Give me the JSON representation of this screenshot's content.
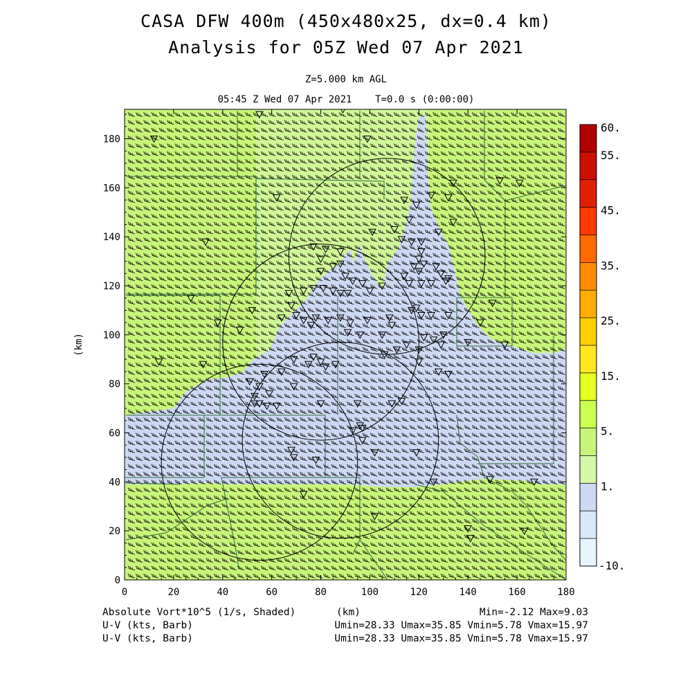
{
  "title": {
    "line1": "CASA DFW 400m (450x480x25, dx=0.4 km)",
    "line2": "Analysis for 05Z Wed 07 Apr 2021"
  },
  "subtitle": {
    "level": "Z=5.000 km AGL",
    "time": "05:45 Z Wed 07 Apr 2021    T=0.0 s (0:00:00)"
  },
  "axes": {
    "xlabel": "(km)",
    "ylabel": "(km)",
    "x_ticks": [
      "0",
      "20",
      "40",
      "60",
      "80",
      "100",
      "120",
      "140",
      "160",
      "180"
    ],
    "y_ticks": [
      "0",
      "20",
      "40",
      "60",
      "80",
      "100",
      "120",
      "140",
      "160",
      "180"
    ],
    "xlim": [
      0,
      180
    ],
    "ylim": [
      0,
      192
    ]
  },
  "colorbar": {
    "labels": [
      "60.",
      "55.",
      "45.",
      "35.",
      "25.",
      "15.",
      "5.",
      "1.",
      "-10."
    ],
    "colors": [
      "#b00000",
      "#cc1000",
      "#e22000",
      "#ff3a00",
      "#ff6a00",
      "#ff8c00",
      "#ffae00",
      "#ffd000",
      "#ffe820",
      "#e6ff20",
      "#ccff50",
      "#c8f47a",
      "#d6f6aa",
      "#cdd8f2",
      "#d8e8f8",
      "#e6f6fc"
    ],
    "colors_note_free": true
  },
  "footer": {
    "field": "Absolute Vort*10^5 (1/s, Shaded)",
    "unit": "(km)",
    "minmax": "Min=-2.12 Max=9.03",
    "barb1": "U-V (kts, Barb)",
    "barb2": "U-V (kts, Barb)",
    "stats1": "Umin=28.33 Umax=35.85 Vmin=5.78 Vmax=15.97",
    "stats2": "Umin=28.33 Umax=35.85 Vmin=5.78 Vmax=15.97"
  },
  "map": {
    "field_colors": {
      "high": "#c8f47a",
      "low": "#cdd8f2"
    },
    "radar_rings": [
      {
        "center": [
          55,
          48
        ],
        "radius_km": 40
      },
      {
        "center": [
          88,
          57
        ],
        "radius_km": 40
      },
      {
        "center": [
          80,
          97
        ],
        "radius_km": 40
      },
      {
        "center": [
          107,
          132
        ],
        "radius_km": 40
      }
    ],
    "wind_barb_color": "#000000",
    "station_marker": "inverted-triangle"
  }
}
